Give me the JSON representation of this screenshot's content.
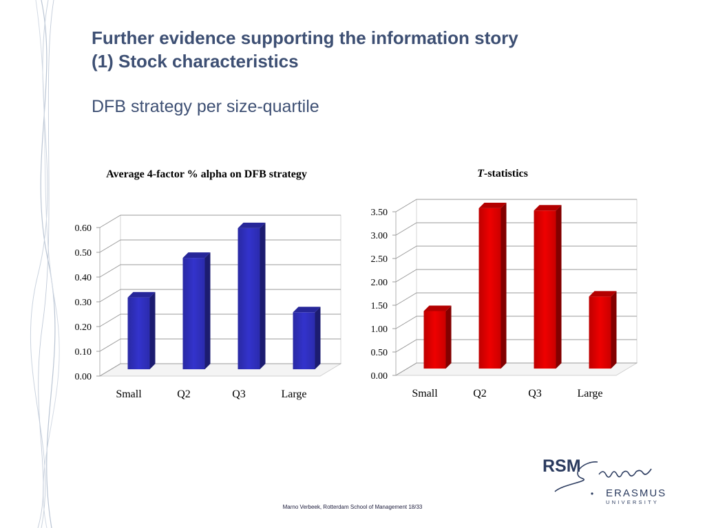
{
  "slide": {
    "title_line1": "Further evidence supporting the information story",
    "title_line2": "(1) Stock characteristics",
    "subtitle": "DFB strategy per size-quartile",
    "footer": "Marno Verbeek, Rotterdam School of Management   18/33"
  },
  "logo": {
    "rsm": "RSM",
    "erasmus": "ERASMUS",
    "university": "UNIVERSITY"
  },
  "colors": {
    "title": "#3d4f73",
    "blue_bar": "#3333cc",
    "red_bar": "#ee0000"
  },
  "chart_data": [
    {
      "type": "bar",
      "title": "Average 4-factor % alpha on DFB strategy",
      "categories": [
        "Small",
        "Q2",
        "Q3",
        "Large"
      ],
      "values": [
        0.29,
        0.45,
        0.57,
        0.23
      ],
      "ylim": [
        0,
        0.6
      ],
      "yticks": [
        "0.00",
        "0.10",
        "0.20",
        "0.30",
        "0.40",
        "0.50",
        "0.60"
      ],
      "grid": true,
      "color": "#3333cc"
    },
    {
      "type": "bar",
      "title": "T-statistics",
      "title_italic_part": "T",
      "title_rest": "-statistics",
      "categories": [
        "Small",
        "Q2",
        "Q3",
        "Large"
      ],
      "values": [
        1.23,
        3.43,
        3.38,
        1.54
      ],
      "ylim": [
        0,
        3.5
      ],
      "yticks": [
        "0.00",
        "0.50",
        "1.00",
        "1.50",
        "2.00",
        "2.50",
        "3.00",
        "3.50"
      ],
      "grid": true,
      "color": "#ee0000"
    }
  ]
}
